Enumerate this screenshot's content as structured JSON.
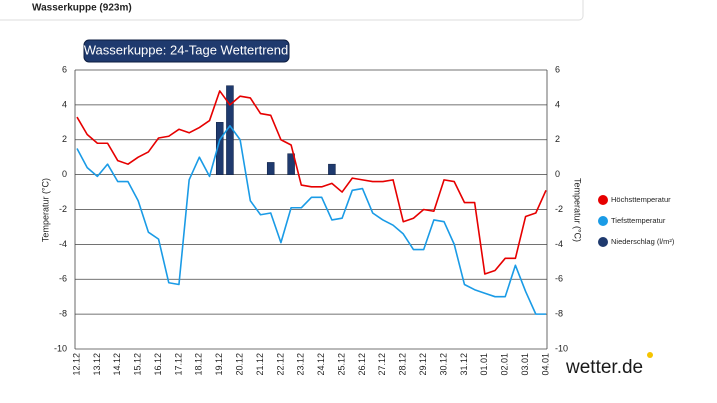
{
  "header": {
    "title": "Wasserkuppe (923m)"
  },
  "logo": "wetter.de",
  "chart_data": {
    "type": "line",
    "title": "Wasserkuppe: 24-Tage Wettertrend",
    "y_label": "Temperatur (°C)",
    "y2_label": "Temperatur (°C)",
    "categories": [
      "12.12",
      null,
      "13.12",
      null,
      "14.12",
      null,
      "15.12",
      null,
      "16.12",
      null,
      "17.12",
      null,
      "18.12",
      null,
      "19.12",
      null,
      "20.12",
      null,
      "21.12",
      null,
      "22.12",
      null,
      "23.12",
      null,
      "24.12",
      null,
      "25.12",
      null,
      "26.12",
      null,
      "27.12",
      null,
      "28.12",
      null,
      "29.12",
      null,
      "30.12",
      null,
      "31.12",
      null,
      "01.01",
      null,
      "02.01",
      null,
      "03.01",
      null,
      "04.01"
    ],
    "series": [
      {
        "name": "Höchsttemperatur",
        "color": "#e60000",
        "kind": "line",
        "values": [
          3.3,
          2.3,
          1.8,
          1.8,
          0.8,
          0.6,
          1.0,
          1.3,
          2.1,
          2.2,
          2.6,
          2.4,
          2.7,
          3.1,
          4.8,
          4.0,
          4.5,
          4.4,
          3.5,
          3.4,
          2.0,
          1.7,
          -0.6,
          -0.7,
          -0.7,
          -0.5,
          -1.0,
          -0.2,
          -0.3,
          -0.4,
          -0.4,
          -0.3,
          -2.7,
          -2.5,
          -2.0,
          -2.1,
          -0.3,
          -0.4,
          -1.6,
          -1.6,
          -5.7,
          -5.5,
          -4.8,
          -4.8,
          -2.4,
          -2.2,
          -0.9
        ]
      },
      {
        "name": "Tiefsttemperatur",
        "color": "#1a9be6",
        "kind": "line",
        "values": [
          1.5,
          0.4,
          -0.1,
          0.6,
          -0.4,
          -0.4,
          -1.5,
          -3.3,
          -3.7,
          -6.2,
          -6.3,
          -0.3,
          1.0,
          -0.1,
          2.0,
          2.8,
          2.0,
          -1.5,
          -2.3,
          -2.2,
          -3.9,
          -1.9,
          -1.9,
          -1.3,
          -1.3,
          -2.6,
          -2.5,
          -0.9,
          -0.8,
          -2.2,
          -2.6,
          -2.9,
          -3.4,
          -4.3,
          -4.3,
          -2.6,
          -2.7,
          -4.0,
          -6.3,
          -6.6,
          -6.8,
          -7.0,
          -7.0,
          -5.2,
          -6.7,
          -8.0,
          -8.0
        ]
      },
      {
        "name": "Niederschlag (l/m²)",
        "color": "#1f3a6e",
        "kind": "bar",
        "values": [
          null,
          null,
          null,
          null,
          null,
          null,
          null,
          null,
          null,
          null,
          null,
          null,
          null,
          null,
          3.0,
          5.1,
          null,
          null,
          null,
          0.7,
          null,
          1.2,
          null,
          null,
          null,
          0.6,
          null,
          null,
          null,
          null,
          null,
          null,
          null,
          null,
          null,
          null,
          null,
          null,
          null,
          null,
          null,
          null,
          null,
          null,
          null,
          null,
          null
        ]
      }
    ],
    "ylim": [
      -10,
      6
    ],
    "yticks": [
      -10,
      -8,
      -6,
      -4,
      -2,
      0,
      2,
      4,
      6
    ],
    "y2lim": [
      -10,
      6
    ],
    "y2ticks": [
      -10,
      -8,
      -6,
      -4,
      -2,
      0,
      2,
      4,
      6
    ],
    "grid": true,
    "legend": "right"
  }
}
